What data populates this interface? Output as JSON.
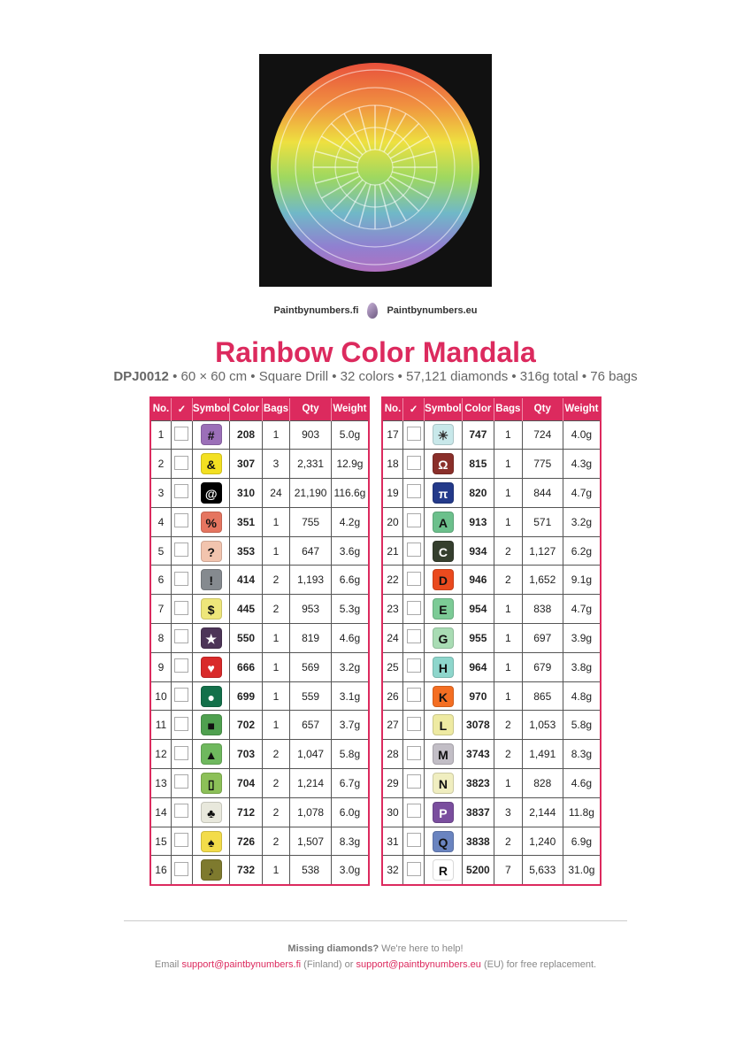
{
  "brand": {
    "left": "Paintbynumbers.fi",
    "right": "Paintbynumbers.eu"
  },
  "title": "Rainbow Color Mandala",
  "subtitle": {
    "code": "DPJ0012",
    "details": " • 60 × 60 cm • Square Drill • 32 colors • 57,121 diamonds • 316g total • 76 bags"
  },
  "headers": [
    "No.",
    "✓",
    "Symbol",
    "Color",
    "Bags",
    "Qty",
    "Weight"
  ],
  "accent": "#dc2a5e",
  "rows": [
    [
      "1",
      "#",
      "208",
      "1",
      "903",
      "5.0g",
      "#9b6fb8",
      "#111"
    ],
    [
      "2",
      "&",
      "307",
      "3",
      "2,331",
      "12.9g",
      "#f3e022",
      "#111"
    ],
    [
      "3",
      "@",
      "310",
      "24",
      "21,190",
      "116.6g",
      "#000000",
      "#fff"
    ],
    [
      "4",
      "%",
      "351",
      "1",
      "755",
      "4.2g",
      "#e57560",
      "#111"
    ],
    [
      "5",
      "?",
      "353",
      "1",
      "647",
      "3.6g",
      "#f2c4ae",
      "#111"
    ],
    [
      "6",
      "!",
      "414",
      "2",
      "1,193",
      "6.6g",
      "#858a8f",
      "#111"
    ],
    [
      "7",
      "$",
      "445",
      "2",
      "953",
      "5.3g",
      "#eee67a",
      "#111"
    ],
    [
      "8",
      "★",
      "550",
      "1",
      "819",
      "4.6g",
      "#4d3558",
      "#fff"
    ],
    [
      "9",
      "♥",
      "666",
      "1",
      "569",
      "3.2g",
      "#d92a2a",
      "#fff"
    ],
    [
      "10",
      "●",
      "699",
      "1",
      "559",
      "3.1g",
      "#13704a",
      "#fff"
    ],
    [
      "11",
      "■",
      "702",
      "1",
      "657",
      "3.7g",
      "#4fa04f",
      "#111"
    ],
    [
      "12",
      "▲",
      "703",
      "2",
      "1,047",
      "5.8g",
      "#6fb85e",
      "#111"
    ],
    [
      "13",
      "▯",
      "704",
      "2",
      "1,214",
      "6.7g",
      "#8cc058",
      "#111"
    ],
    [
      "14",
      "♣",
      "712",
      "2",
      "1,078",
      "6.0g",
      "#e8e8dc",
      "#111"
    ],
    [
      "15",
      "♠",
      "726",
      "2",
      "1,507",
      "8.3g",
      "#f3dc4a",
      "#111"
    ],
    [
      "16",
      "♪",
      "732",
      "1",
      "538",
      "3.0g",
      "#7e7a2e",
      "#111"
    ],
    [
      "17",
      "☀",
      "747",
      "1",
      "724",
      "4.0g",
      "#c8e8ea",
      "#333"
    ],
    [
      "18",
      "Ω",
      "815",
      "1",
      "775",
      "4.3g",
      "#8a2f2a",
      "#fff"
    ],
    [
      "19",
      "π",
      "820",
      "1",
      "844",
      "4.7g",
      "#243a8a",
      "#fff"
    ],
    [
      "20",
      "A",
      "913",
      "1",
      "571",
      "3.2g",
      "#6cc08c",
      "#111"
    ],
    [
      "21",
      "C",
      "934",
      "2",
      "1,127",
      "6.2g",
      "#353f2e",
      "#fff"
    ],
    [
      "22",
      "D",
      "946",
      "2",
      "1,652",
      "9.1g",
      "#ea4a1e",
      "#111"
    ],
    [
      "23",
      "E",
      "954",
      "1",
      "838",
      "4.7g",
      "#7ccb96",
      "#111"
    ],
    [
      "24",
      "G",
      "955",
      "1",
      "697",
      "3.9g",
      "#a9dcb4",
      "#111"
    ],
    [
      "25",
      "H",
      "964",
      "1",
      "679",
      "3.8g",
      "#8ed6cc",
      "#111"
    ],
    [
      "26",
      "K",
      "970",
      "1",
      "865",
      "4.8g",
      "#f46e22",
      "#111"
    ],
    [
      "27",
      "L",
      "3078",
      "2",
      "1,053",
      "5.8g",
      "#eeeaa2",
      "#111"
    ],
    [
      "28",
      "M",
      "3743",
      "2",
      "1,491",
      "8.3g",
      "#c2bec6",
      "#111"
    ],
    [
      "29",
      "N",
      "3823",
      "1",
      "828",
      "4.6g",
      "#f0eec0",
      "#111"
    ],
    [
      "30",
      "P",
      "3837",
      "3",
      "2,144",
      "11.8g",
      "#7a4e9e",
      "#fff"
    ],
    [
      "31",
      "Q",
      "3838",
      "2",
      "1,240",
      "6.9g",
      "#6a84c0",
      "#111"
    ],
    [
      "32",
      "R",
      "5200",
      "7",
      "5,633",
      "31.0g",
      "#ffffff",
      "#111"
    ]
  ],
  "footer": {
    "strong": "Missing diamonds?",
    "line1": " We're here to help!",
    "email_pre": "Email ",
    "email1": "support@paintbynumbers.fi",
    "mid": " (Finland) or ",
    "email2": "support@paintbynumbers.eu",
    "post": " (EU) for free replacement."
  }
}
